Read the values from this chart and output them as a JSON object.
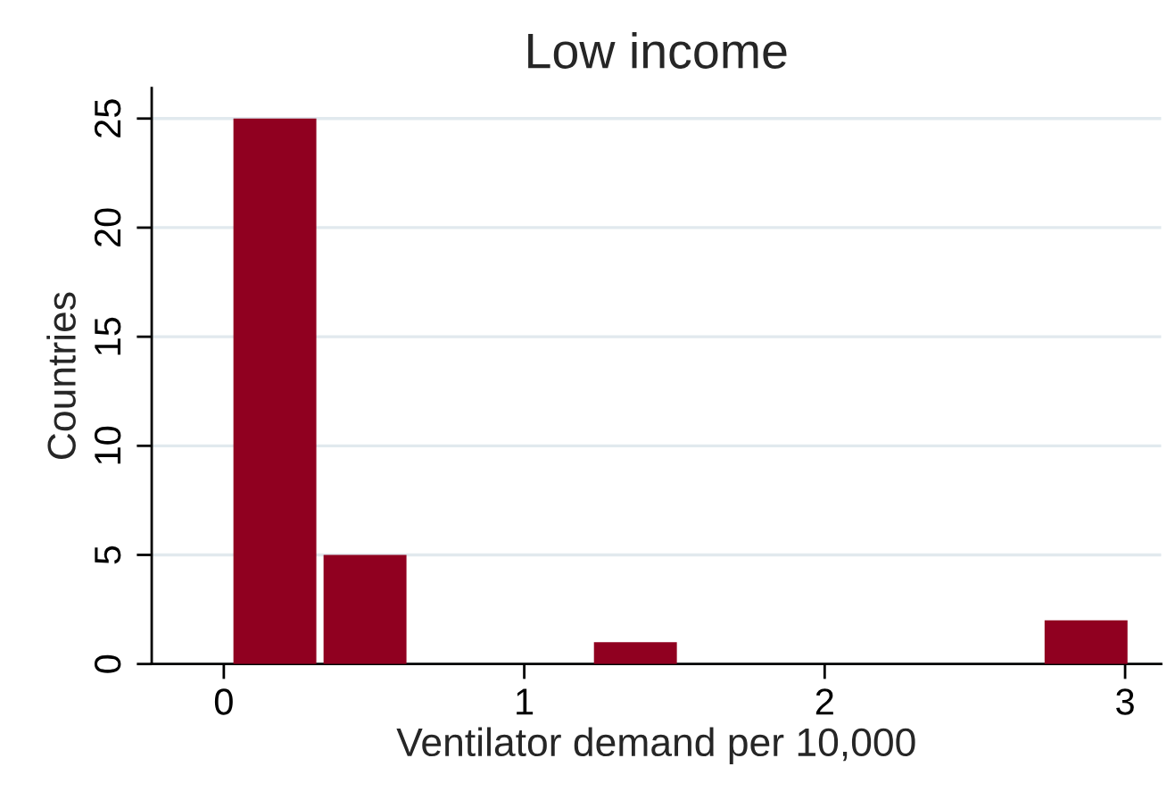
{
  "chart_data": {
    "type": "histogram",
    "title": "Low income",
    "xlabel": "Ventilator demand per 10,000",
    "ylabel": "Countries",
    "bins": [
      0.02,
      0.32,
      0.62,
      0.92,
      1.22,
      1.52,
      1.82,
      2.12,
      2.42,
      2.72,
      3.02
    ],
    "values": [
      25,
      5,
      0,
      0,
      1,
      0,
      0,
      0,
      0,
      2
    ],
    "color": "#900020",
    "xlim": [
      -0.24,
      3.12
    ],
    "xticks": [
      0,
      1,
      2,
      3
    ],
    "ylim": [
      0,
      26.4
    ],
    "yticks": [
      0,
      5,
      10,
      15,
      20,
      25
    ],
    "grid": "y"
  }
}
